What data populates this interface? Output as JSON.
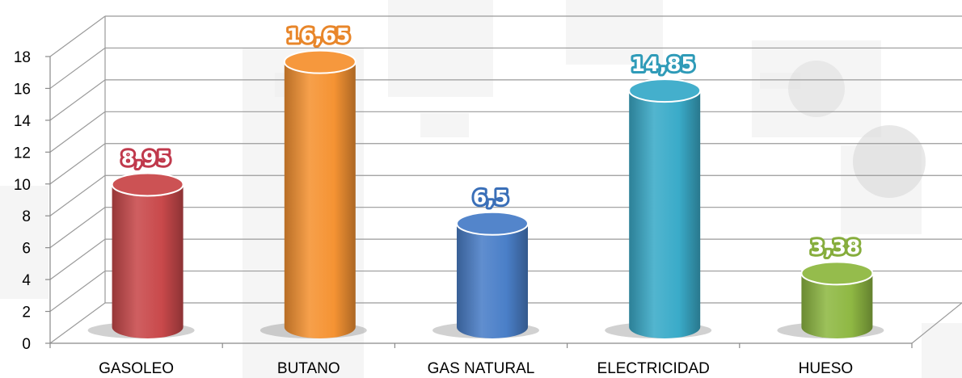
{
  "chart_data": {
    "type": "bar",
    "categories": [
      "GASOLEO",
      "BUTANO",
      "GAS NATURAL",
      "ELECTRICIDAD",
      "HUESO"
    ],
    "values": [
      8.95,
      16.65,
      6.5,
      14.85,
      3.38
    ],
    "data_labels": [
      "8,95",
      "16,65",
      "6,5",
      "14,85",
      "3,38"
    ],
    "colors": [
      "#c9494b",
      "#f59333",
      "#4a7fc8",
      "#3aabc9",
      "#8fb843"
    ],
    "label_outline_colors": [
      "#c0394c",
      "#e8862a",
      "#3a6fb8",
      "#2f9bb8",
      "#86ad3c"
    ],
    "ylim": [
      0,
      18
    ],
    "yticks": [
      "0",
      "2",
      "4",
      "6",
      "8",
      "10",
      "12",
      "14",
      "16",
      "18"
    ],
    "grid": true,
    "style": "3d-cylinder",
    "title": "",
    "xlabel": "",
    "ylabel": ""
  }
}
